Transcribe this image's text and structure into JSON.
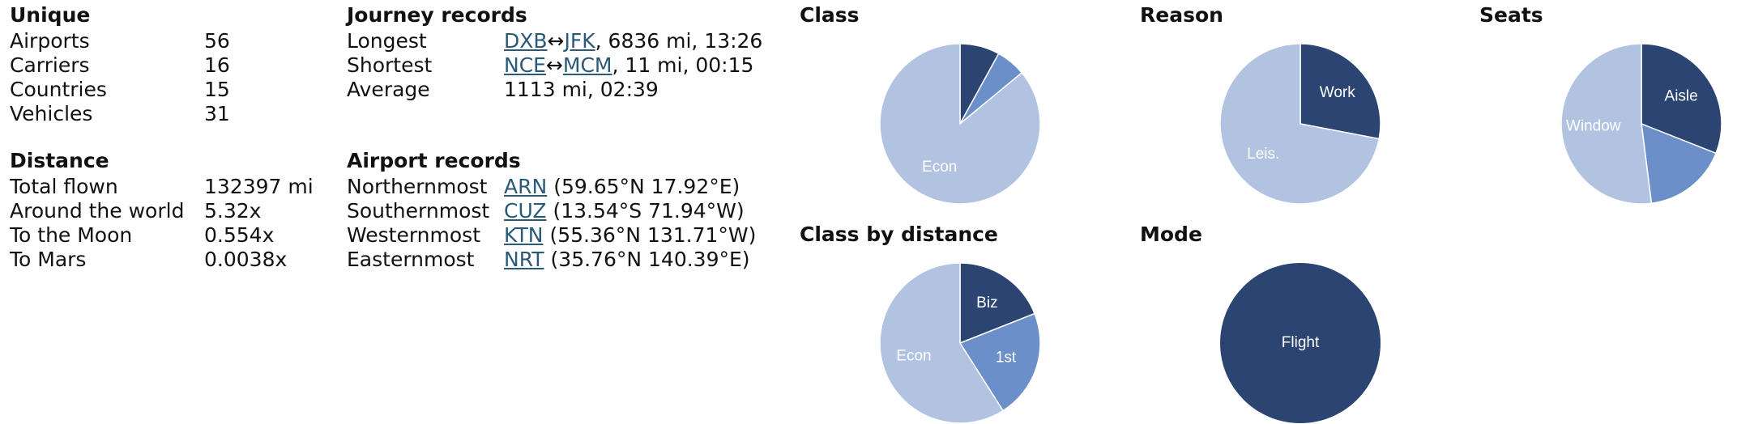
{
  "unique": {
    "title": "Unique",
    "rows": [
      [
        "Airports",
        56
      ],
      [
        "Carriers",
        16
      ],
      [
        "Countries",
        15
      ],
      [
        "Vehicles",
        31
      ]
    ]
  },
  "distance": {
    "title": "Distance",
    "rows": [
      [
        "Total flown",
        "132397 mi"
      ],
      [
        "Around the world",
        "5.32x"
      ],
      [
        "To the Moon",
        "0.554x"
      ],
      [
        "To Mars",
        "0.0038x"
      ]
    ]
  },
  "journey": {
    "title": "Journey records",
    "rows": [
      {
        "label": "Longest",
        "from": "DXB",
        "sep": "↔",
        "to": "JFK",
        "rest": ", 6836 mi, 13:26"
      },
      {
        "label": "Shortest",
        "from": "NCE",
        "sep": "↔",
        "to": "MCM",
        "rest": ", 11 mi, 00:15"
      },
      {
        "label": "Average",
        "text": "1113 mi, 02:39"
      }
    ]
  },
  "airports": {
    "title": "Airport records",
    "rows": [
      {
        "label": "Northernmost",
        "code": "ARN",
        "coords": "(59.65°N 17.92°E)"
      },
      {
        "label": "Southernmost",
        "code": "CUZ",
        "coords": "(13.54°S 71.94°W)"
      },
      {
        "label": "Westernmost",
        "code": "KTN",
        "coords": "(55.36°N 131.71°W)"
      },
      {
        "label": "Easternmost",
        "code": "NRT",
        "coords": "(35.76°N 140.39°E)"
      }
    ]
  },
  "chart_data": [
    {
      "type": "pie",
      "title": "Class",
      "categories": [
        null,
        null,
        "Econ"
      ],
      "values": [
        8,
        6,
        86
      ],
      "colors": [
        "#2c4471",
        "#6b8fc8",
        "#b1c3e1"
      ]
    },
    {
      "type": "pie",
      "title": "Reason",
      "categories": [
        "Work",
        "Leis."
      ],
      "values": [
        28,
        72
      ],
      "colors": [
        "#2c4471",
        "#b1c3e1"
      ]
    },
    {
      "type": "pie",
      "title": "Seats",
      "categories": [
        "Aisle",
        null,
        "Window"
      ],
      "values": [
        31,
        17,
        52
      ],
      "colors": [
        "#2c4471",
        "#6b8fc8",
        "#b1c3e1"
      ]
    },
    {
      "type": "pie",
      "title": "Class by distance",
      "categories": [
        "Biz",
        "1st",
        "Econ"
      ],
      "values": [
        19,
        22,
        59
      ],
      "colors": [
        "#2c4471",
        "#6b8fc8",
        "#b1c3e1"
      ]
    },
    {
      "type": "pie",
      "title": "Mode",
      "categories": [
        "Flight"
      ],
      "values": [
        100
      ],
      "colors": [
        "#2c4471"
      ]
    }
  ]
}
